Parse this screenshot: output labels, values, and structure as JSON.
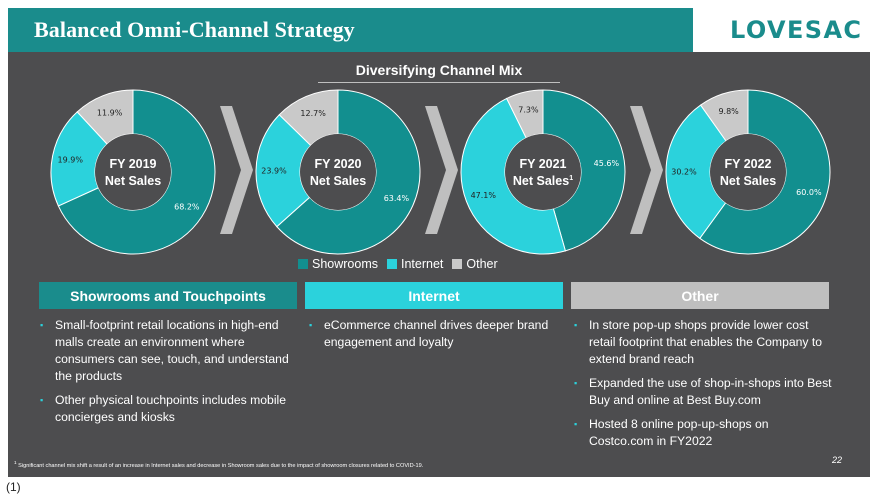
{
  "header": {
    "title": "Balanced Omni-Channel Strategy",
    "logo_text": "LOVESAC"
  },
  "chart_title": "Diversifying Channel Mix",
  "colors": {
    "showrooms": "#128f8f",
    "internet": "#2bd2dc",
    "other": "#c9c9c9",
    "teal_dark": "#1a8c8c",
    "panel": "#4d4d4f"
  },
  "chart_data": [
    {
      "type": "pie",
      "title": "FY 2019 Net Sales",
      "title_lines": [
        "FY 2019",
        "Net Sales"
      ],
      "categories": [
        "Showrooms",
        "Internet",
        "Other"
      ],
      "values": [
        68.2,
        19.9,
        11.9
      ],
      "labels": [
        "68.2%",
        "19.9%",
        "11.9%"
      ]
    },
    {
      "type": "pie",
      "title": "FY 2020 Net Sales",
      "title_lines": [
        "FY 2020",
        "Net Sales"
      ],
      "categories": [
        "Showrooms",
        "Internet",
        "Other"
      ],
      "values": [
        63.4,
        23.9,
        12.7
      ],
      "labels": [
        "63.4%",
        "23.9%",
        "12.7%"
      ]
    },
    {
      "type": "pie",
      "title": "FY 2021 Net Sales",
      "title_lines": [
        "FY 2021",
        "Net Sales"
      ],
      "title_sup": "1",
      "categories": [
        "Showrooms",
        "Internet",
        "Other"
      ],
      "values": [
        45.6,
        47.1,
        7.3
      ],
      "labels": [
        "45.6%",
        "47.1%",
        "7.3%"
      ]
    },
    {
      "type": "pie",
      "title": "FY 2022 Net Sales",
      "title_lines": [
        "FY 2022",
        "Net Sales"
      ],
      "categories": [
        "Showrooms",
        "Internet",
        "Other"
      ],
      "values": [
        60.0,
        30.2,
        9.8
      ],
      "labels": [
        "60.0%",
        "30.2%",
        "9.8%"
      ]
    }
  ],
  "legend": {
    "items": [
      {
        "label": "Showrooms",
        "color": "#128f8f"
      },
      {
        "label": "Internet",
        "color": "#2bd2dc"
      },
      {
        "label": "Other",
        "color": "#c9c9c9"
      }
    ]
  },
  "categories": {
    "showrooms": {
      "title": "Showrooms and Touchpoints",
      "bullets": [
        "Small-footprint retail locations in high-end malls create an environment where consumers can see, touch, and understand the products",
        "Other physical touchpoints includes mobile concierges and kiosks"
      ]
    },
    "internet": {
      "title": "Internet",
      "bullets": [
        "eCommerce channel drives deeper brand engagement and loyalty"
      ]
    },
    "other": {
      "title": "Other",
      "bullets": [
        "In store pop-up shops provide lower cost retail footprint that enables the Company to extend brand reach",
        "Expanded the use of shop-in-shops into Best Buy and online at Best Buy.com",
        "Hosted 8 online pop-up-shops on Costco.com in FY2022"
      ]
    }
  },
  "footnote": {
    "marker": "1",
    "text": "Significant channel mix shift a result of an increase in Internet sales and decrease in Showroom sales due to the impact of showroom closures related to COVID-19."
  },
  "page_number": "22",
  "below_label": "(1)"
}
